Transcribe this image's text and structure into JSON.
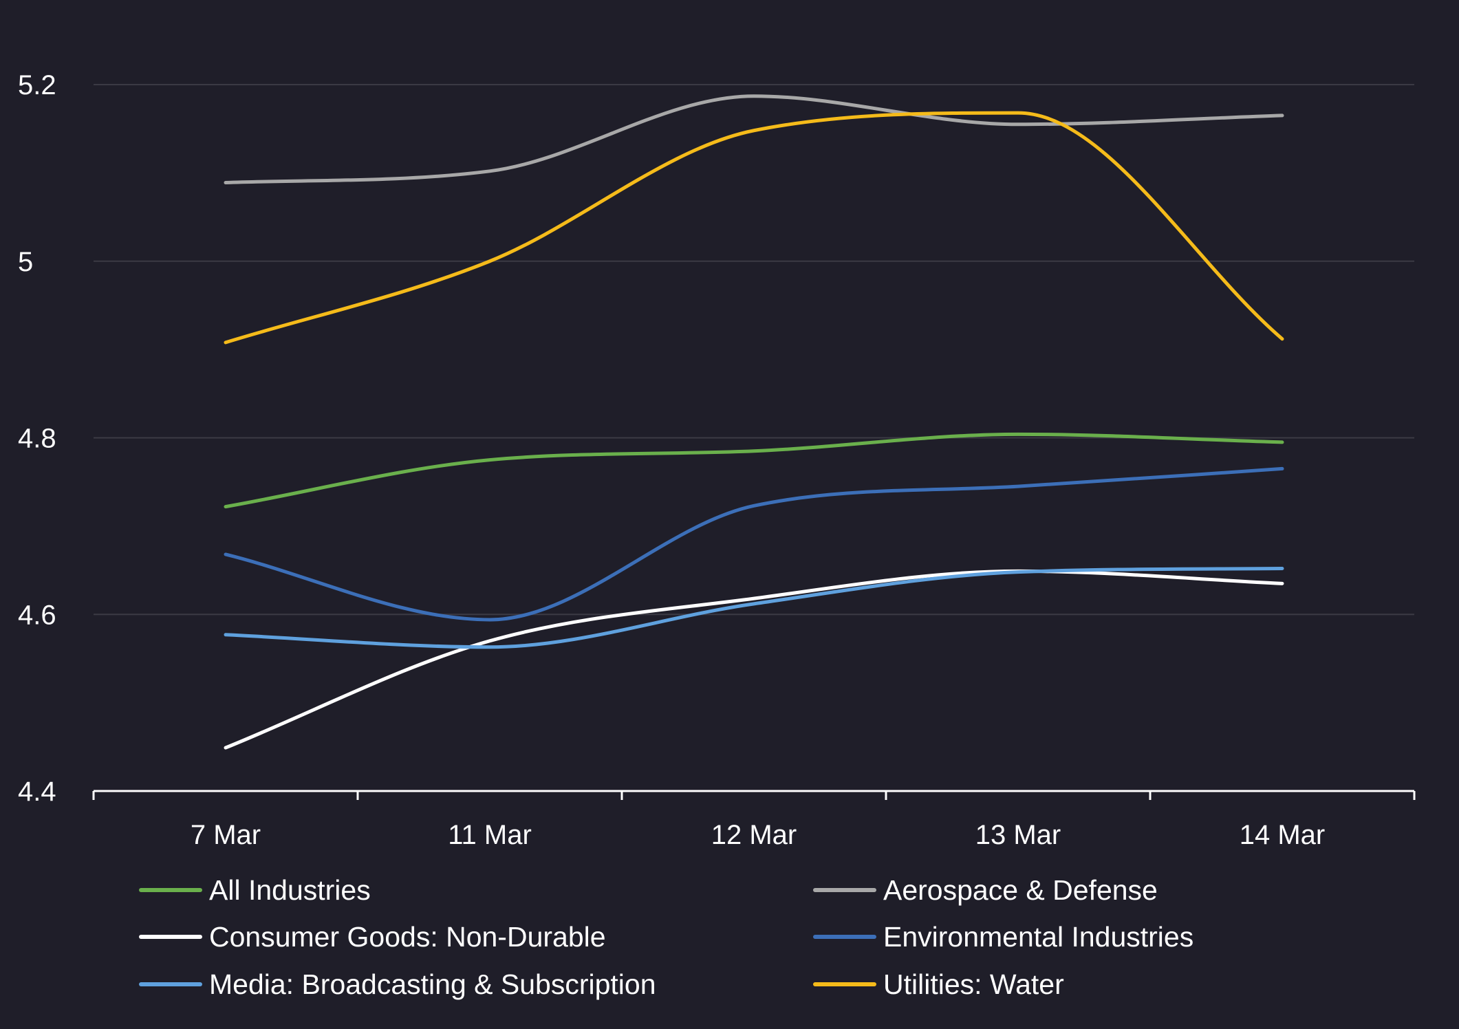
{
  "chart_data": {
    "type": "line",
    "title": "",
    "xlabel": "",
    "ylabel": "",
    "categories": [
      "7 Mar",
      "11 Mar",
      "12 Mar",
      "13 Mar",
      "14 Mar"
    ],
    "ylim": [
      4.4,
      5.2
    ],
    "yticks": [
      "4.4",
      "4.6",
      "4.8",
      "5",
      "5.2"
    ],
    "grid": true,
    "legend_position": "bottom",
    "series": [
      {
        "name": "All Industries",
        "color": "#6ab04c",
        "values": [
          4.722,
          4.775,
          4.785,
          4.804,
          4.795
        ]
      },
      {
        "name": "Aerospace & Defense",
        "color": "#a8a8a8",
        "values": [
          5.089,
          5.102,
          5.187,
          5.155,
          5.165
        ]
      },
      {
        "name": "Consumer Goods: Non-Durable",
        "color": "#ffffff",
        "values": [
          4.449,
          4.57,
          4.618,
          4.649,
          4.635
        ]
      },
      {
        "name": "Environmental Industries",
        "color": "#3c6fb8",
        "values": [
          4.668,
          4.594,
          4.723,
          4.745,
          4.765
        ]
      },
      {
        "name": "Media: Broadcasting & Subscription",
        "color": "#5fa1de",
        "values": [
          4.577,
          4.563,
          4.612,
          4.648,
          4.652
        ]
      },
      {
        "name": "Utilities: Water",
        "color": "#f5bb1a",
        "values": [
          4.908,
          5.0,
          5.148,
          5.168,
          4.912
        ]
      }
    ]
  }
}
